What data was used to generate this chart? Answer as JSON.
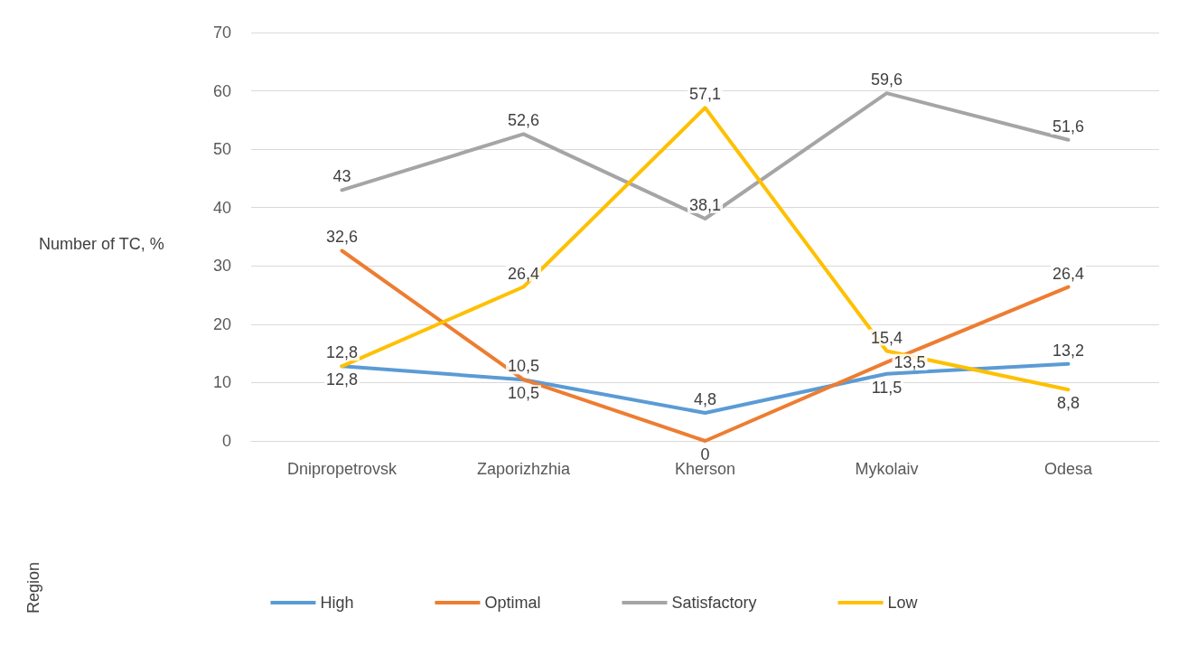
{
  "chart_data": {
    "type": "line",
    "annotations": [
      "Region"
    ],
    "ylabel": "Number of TC, %",
    "categories": [
      "Dnipropetrovsk",
      "Zaporizhzhia",
      "Kherson",
      "Mykolaiv",
      "Odesa"
    ],
    "series": [
      {
        "name": "High",
        "color": "#5b9bd5",
        "values": [
          12.8,
          10.5,
          4.8,
          11.5,
          13.2
        ],
        "value_labels": [
          "12,8",
          "10,5",
          "4,8",
          "11,5",
          "13,2"
        ]
      },
      {
        "name": "Optimal",
        "color": "#ed7d31",
        "values": [
          32.6,
          10.5,
          0,
          13.5,
          26.4
        ],
        "value_labels": [
          "32,6",
          "10,5",
          "0",
          "13,5",
          "26,4"
        ]
      },
      {
        "name": "Satisfactory",
        "color": "#a5a5a5",
        "values": [
          43,
          52.6,
          38.1,
          59.6,
          51.6
        ],
        "value_labels": [
          "43",
          "52,6",
          "38,1",
          "59,6",
          "51,6"
        ]
      },
      {
        "name": "Low",
        "color": "#ffc000",
        "values": [
          12.8,
          26.4,
          57.1,
          15.4,
          8.8
        ],
        "value_labels": [
          "12,8",
          "26,4",
          "57,1",
          "15,4",
          "8,8"
        ]
      }
    ],
    "ylim": [
      0,
      70
    ],
    "yticks": [
      0,
      10,
      20,
      30,
      40,
      50,
      60,
      70
    ],
    "grid": "y",
    "legend": "bottom",
    "marker": "none",
    "line_style": "solid"
  }
}
